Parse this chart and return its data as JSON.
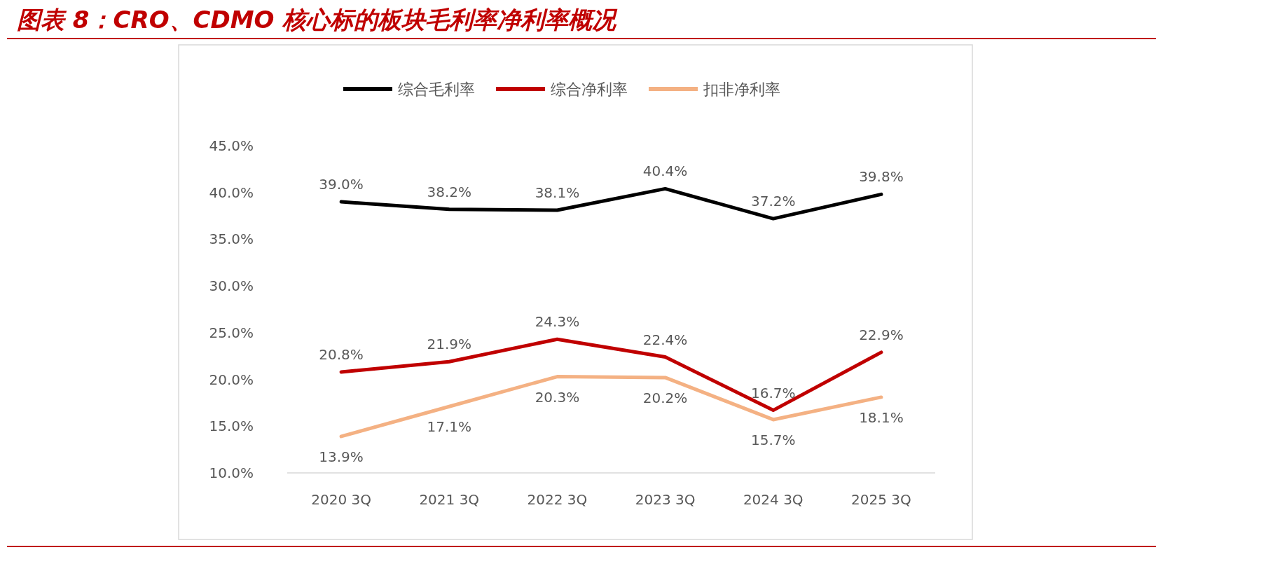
{
  "chart_data": {
    "type": "line",
    "title": "图表 8：CRO、CDMO 核心标的板块毛利率净利率概况",
    "categories": [
      "2020 3Q",
      "2021 3Q",
      "2022 3Q",
      "2023 3Q",
      "2024 3Q",
      "2025 3Q"
    ],
    "series": [
      {
        "name": "综合毛利率",
        "color": "#000000",
        "values": [
          39.0,
          38.2,
          38.1,
          40.4,
          37.2,
          39.8
        ],
        "value_labels": [
          "39.0%",
          "38.2%",
          "38.1%",
          "40.4%",
          "37.2%",
          "39.8%"
        ]
      },
      {
        "name": "综合净利率",
        "color": "#c00000",
        "values": [
          20.8,
          21.9,
          24.3,
          22.4,
          16.7,
          22.9
        ],
        "value_labels": [
          "20.8%",
          "21.9%",
          "24.3%",
          "22.4%",
          "16.7%",
          "22.9%"
        ]
      },
      {
        "name": "扣非净利率",
        "color": "#f4b183",
        "values": [
          13.9,
          17.1,
          20.3,
          20.2,
          15.7,
          18.1
        ],
        "value_labels": [
          "13.9%",
          "17.1%",
          "20.3%",
          "20.2%",
          "15.7%",
          "18.1%"
        ]
      }
    ],
    "ylim": [
      10,
      45
    ],
    "yticks": [
      {
        "value": 10,
        "label": "10.0%"
      },
      {
        "value": 15,
        "label": "15.0%"
      },
      {
        "value": 20,
        "label": "20.0%"
      },
      {
        "value": 25,
        "label": "25.0%"
      },
      {
        "value": 30,
        "label": "30.0%"
      },
      {
        "value": 35,
        "label": "35.0%"
      },
      {
        "value": 40,
        "label": "40.0%"
      },
      {
        "value": 45,
        "label": "45.0%"
      }
    ],
    "legend": "top",
    "grid": false,
    "marker": "none",
    "line_style": "solid"
  }
}
